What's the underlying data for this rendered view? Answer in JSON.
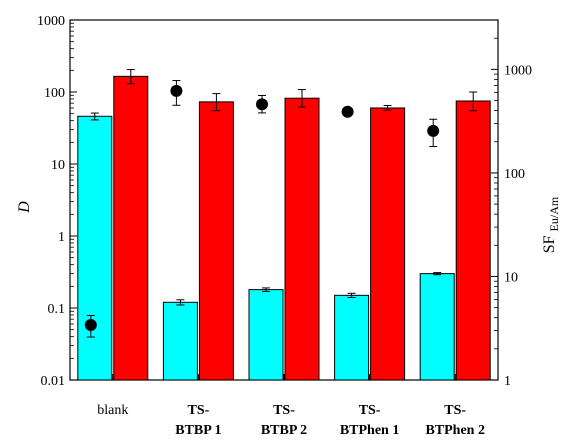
{
  "chart_data": {
    "type": "bar",
    "categories": [
      {
        "lines": [
          "blank"
        ],
        "bold": false
      },
      {
        "lines": [
          "TS-",
          "BTBP 1"
        ],
        "bold": true
      },
      {
        "lines": [
          "TS-",
          "BTBP 2"
        ],
        "bold": true
      },
      {
        "lines": [
          "TS-",
          "BTPhen 1"
        ],
        "bold": true
      },
      {
        "lines": [
          "TS-",
          "BTPhen 2"
        ],
        "bold": true
      }
    ],
    "y_left": {
      "label": "D",
      "scale": "log",
      "range": [
        0.01,
        1000
      ],
      "ticks": [
        "0.01",
        "0.1",
        "1",
        "10",
        "100",
        "1000"
      ]
    },
    "y_right": {
      "label_main": "SF",
      "label_sub": "Eu/Am",
      "scale": "log",
      "range": [
        1,
        3000
      ],
      "ticks": [
        "1",
        "10",
        "100",
        "1000"
      ]
    },
    "series": [
      {
        "axis": "left",
        "kind": "bar",
        "color": "#00ffff",
        "values": [
          46,
          0.12,
          0.18,
          0.15,
          0.3
        ],
        "err_low": [
          41,
          0.11,
          0.17,
          0.14,
          0.29
        ],
        "err_high": [
          51,
          0.13,
          0.19,
          0.16,
          0.31
        ]
      },
      {
        "axis": "left",
        "kind": "bar",
        "color": "#ff0000",
        "values": [
          165,
          73,
          82,
          60,
          75
        ],
        "err_low": [
          130,
          55,
          62,
          56,
          55
        ],
        "err_high": [
          205,
          95,
          108,
          65,
          100
        ]
      },
      {
        "axis": "right",
        "kind": "point",
        "color": "#000000",
        "values": [
          3.4,
          620,
          460,
          390,
          255
        ],
        "err_low": [
          2.6,
          450,
          380,
          370,
          180
        ],
        "err_high": [
          4.2,
          780,
          560,
          410,
          330
        ]
      }
    ]
  }
}
